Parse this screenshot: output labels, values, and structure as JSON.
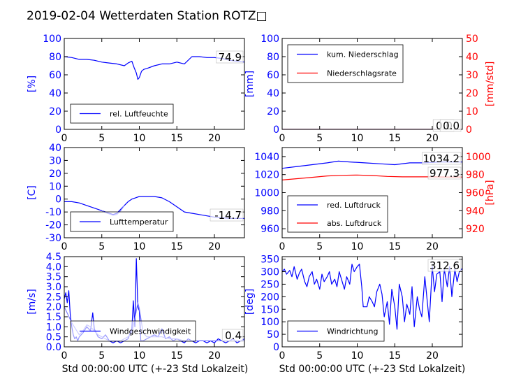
{
  "title": "2019-02-04 Wetterdaten Station ROTZ□",
  "colors": {
    "primary": "#0000ff",
    "secondary": "#ff0000",
    "faint": "#8080ff",
    "frame": "#000000"
  },
  "chart_data": [
    {
      "id": "humidity",
      "type": "line",
      "xlim": [
        0,
        24
      ],
      "xticks": [
        0,
        5,
        10,
        15,
        20
      ],
      "ylim": [
        0,
        100
      ],
      "yticks": [
        0,
        20,
        40,
        60,
        80,
        100
      ],
      "ylabel": "[%]",
      "legend": [
        {
          "label": "rel. Luftfeuchte",
          "color": "#0000ff"
        }
      ],
      "legend_position": "lower-left",
      "value_label": "74.9",
      "series": [
        {
          "name": "rel. Luftfeuchte",
          "color": "#0000ff",
          "x": [
            0,
            1,
            2,
            3,
            4,
            5,
            6,
            7,
            8,
            8.5,
            9,
            9.3,
            9.6,
            9.8,
            10,
            10.3,
            10.6,
            11,
            12,
            13,
            14,
            15,
            16,
            17,
            18,
            19,
            20,
            21,
            22,
            23,
            24
          ],
          "y": [
            80,
            79,
            77,
            77,
            76,
            74,
            73,
            72,
            70,
            73,
            75,
            68,
            62,
            55,
            57,
            64,
            66,
            67,
            70,
            72,
            72,
            74,
            72,
            80,
            80,
            79,
            79,
            78,
            76,
            75,
            74
          ]
        }
      ]
    },
    {
      "id": "precipitation",
      "type": "line",
      "xlim": [
        0,
        24
      ],
      "xticks": [
        0,
        5,
        10,
        15,
        20
      ],
      "ylim": [
        0,
        100
      ],
      "yticks": [
        0,
        20,
        40,
        60,
        80,
        100
      ],
      "ylabel": "[mm]",
      "y2lim": [
        0,
        50
      ],
      "y2ticks": [
        0,
        10,
        20,
        30,
        40,
        50
      ],
      "y2label": "[mm/std]",
      "legend": [
        {
          "label": "kum. Niederschlag",
          "color": "#0000ff"
        },
        {
          "label": "Niederschlagsrate",
          "color": "#ff0000"
        }
      ],
      "legend_position": "upper-left",
      "value_labels": [
        "0.0",
        "0.0"
      ],
      "series": [
        {
          "name": "kum. Niederschlag",
          "axis": "y",
          "color": "#0000ff",
          "x": [
            0,
            24
          ],
          "y": [
            0,
            0
          ]
        },
        {
          "name": "Niederschlagsrate",
          "axis": "y2",
          "color": "#ff0000",
          "x": [
            0,
            24
          ],
          "y": [
            0,
            0
          ]
        }
      ]
    },
    {
      "id": "temperature",
      "type": "line",
      "xlim": [
        0,
        24
      ],
      "xticks": [
        0,
        5,
        10,
        15,
        20
      ],
      "ylim": [
        -30,
        40
      ],
      "yticks": [
        -30,
        -20,
        -10,
        0,
        10,
        20,
        30,
        40
      ],
      "ylabel": "[C]",
      "legend": [
        {
          "label": "Lufttemperatur",
          "color": "#0000ff"
        }
      ],
      "legend_position": "lower-left",
      "value_label": "-14.7",
      "series": [
        {
          "name": "Lufttemperatur",
          "color": "#0000ff",
          "x": [
            0,
            1,
            2,
            3,
            4,
            5,
            6,
            6.5,
            7,
            7.5,
            8,
            8.5,
            9,
            9.5,
            10,
            11,
            12,
            13,
            14,
            15,
            16,
            17,
            18,
            19,
            20,
            21,
            22,
            23,
            24
          ],
          "y": [
            -2,
            -2,
            -3,
            -5,
            -7,
            -9,
            -11,
            -12,
            -11,
            -8,
            -5,
            -2,
            0,
            1,
            2,
            2,
            2,
            1,
            -2,
            -6,
            -10,
            -11,
            -12,
            -13,
            -14,
            -14.5,
            -15,
            -15,
            -15
          ]
        },
        {
          "name": "",
          "color": "#8080ff",
          "x": [
            5,
            5.5,
            6,
            6.5,
            7,
            7.5,
            8
          ],
          "y": [
            -9,
            -10.5,
            -11.5,
            -12.5,
            -12,
            -9,
            -5
          ]
        }
      ]
    },
    {
      "id": "pressure",
      "type": "line",
      "xlim": [
        0,
        24
      ],
      "xticks": [
        0,
        5,
        10,
        15,
        20
      ],
      "ylim": [
        950,
        1050
      ],
      "yticks": [
        960,
        980,
        1000,
        1020,
        1040
      ],
      "y2lim": [
        910,
        1010
      ],
      "y2ticks": [
        920,
        940,
        960,
        980,
        1000
      ],
      "y2label": "[hPa]",
      "legend": [
        {
          "label": "red. Luftdruck",
          "color": "#0000ff"
        },
        {
          "label": "abs. Luftdruck",
          "color": "#ff0000"
        }
      ],
      "legend_position": "lower-left",
      "value_labels": [
        "1034.2",
        "977.3"
      ],
      "series": [
        {
          "name": "red. Luftdruck",
          "axis": "y",
          "color": "#0000ff",
          "x": [
            0,
            2,
            4,
            6,
            7.5,
            9,
            11,
            13,
            15,
            17,
            19,
            21,
            24
          ],
          "y": [
            1027,
            1029,
            1031,
            1033,
            1035,
            1034,
            1033,
            1032,
            1031,
            1033,
            1033,
            1034,
            1034
          ]
        },
        {
          "name": "abs. Luftdruck",
          "axis": "y2",
          "color": "#ff0000",
          "x": [
            0,
            2,
            4,
            6,
            8,
            10,
            12,
            14,
            16,
            18,
            20,
            22,
            24
          ],
          "y": [
            974,
            975.5,
            977,
            978.5,
            979.2,
            979.5,
            979,
            978,
            977.5,
            977.5,
            977.5,
            977.3,
            977.3
          ]
        }
      ]
    },
    {
      "id": "wind_speed",
      "type": "line",
      "xlim": [
        0,
        24
      ],
      "xticks": [
        0,
        5,
        10,
        15,
        20
      ],
      "ylim": [
        0,
        4.5
      ],
      "yticks": [
        0.0,
        0.5,
        1.0,
        1.5,
        2.0,
        2.5,
        3.0,
        3.5,
        4.0,
        4.5
      ],
      "ylabel": "[m/s]",
      "legend": [
        {
          "label": "Windgeschwindigkeit",
          "color": "#0000ff"
        }
      ],
      "legend_position": "lower-center",
      "value_label": "0.4",
      "series": [
        {
          "name": "Windgeschwindigkeit",
          "color": "#0000ff",
          "x": [
            0,
            0.2,
            0.4,
            0.6,
            0.8,
            1,
            1.2,
            1.4,
            1.6,
            1.8,
            2,
            2.5,
            3,
            3.5,
            3.8,
            4,
            4.5,
            5,
            5.5,
            6,
            6.5,
            7,
            7.5,
            8,
            8.5,
            9,
            9.2,
            9.4,
            9.6,
            9.8,
            10,
            10.2,
            10.5,
            11,
            11.5,
            12,
            12.5,
            13,
            13.5,
            14,
            14.5,
            15,
            15.5,
            16,
            16.5,
            17,
            17.5,
            18,
            18.5,
            19,
            19.5,
            20,
            20.5,
            21,
            21.5,
            22,
            22.5,
            23,
            23.5,
            24
          ],
          "y": [
            2.4,
            2.7,
            2.2,
            2.8,
            1.6,
            1.0,
            0.6,
            0.4,
            0.5,
            0.3,
            0.5,
            0.7,
            1.0,
            0.8,
            1.7,
            0.9,
            0.5,
            0.4,
            0.6,
            0.3,
            0.2,
            0.3,
            0.2,
            0.3,
            0.4,
            0.9,
            2.3,
            1.0,
            4.4,
            2.0,
            1.8,
            0.3,
            0.3,
            0.4,
            0.5,
            0.6,
            0.5,
            0.9,
            0.4,
            0.5,
            0.3,
            0.4,
            0.3,
            0.2,
            0.4,
            0.3,
            0.2,
            0.3,
            0.3,
            0.2,
            0.3,
            0.2,
            0.4,
            0.3,
            0.2,
            0.3,
            0.4,
            0.2,
            0.3,
            0.4
          ]
        },
        {
          "name": "",
          "color": "#8080ff",
          "x": [
            0,
            0.5,
            1,
            1.5,
            2,
            2.5,
            3,
            3.5,
            4,
            4.5,
            5,
            5.5,
            6,
            6.5,
            7,
            7.5,
            8,
            8.5,
            9,
            9.5,
            9.8,
            10,
            10.5,
            11,
            12,
            13,
            14,
            15,
            16,
            17,
            18,
            19,
            20,
            21,
            22,
            23,
            24
          ],
          "y": [
            2.0,
            1.6,
            1.2,
            0.9,
            0.6,
            0.8,
            1.1,
            1.0,
            0.8,
            0.6,
            0.5,
            0.4,
            0.3,
            0.3,
            0.3,
            0.3,
            0.4,
            0.5,
            0.7,
            1.6,
            2.2,
            1.9,
            0.7,
            0.5,
            0.5,
            0.5,
            0.4,
            0.4,
            0.3,
            0.3,
            0.3,
            0.3,
            0.3,
            0.3,
            0.3,
            0.3,
            0.3
          ]
        }
      ]
    },
    {
      "id": "wind_direction",
      "type": "line",
      "xlim": [
        0,
        24
      ],
      "xticks": [
        0,
        5,
        10,
        15,
        20
      ],
      "ylim": [
        0,
        360
      ],
      "yticks": [
        0,
        50,
        100,
        150,
        200,
        250,
        300,
        350
      ],
      "ylabel": "[deg]",
      "legend": [
        {
          "label": "Windrichtung",
          "color": "#0000ff"
        }
      ],
      "legend_position": "lower-left",
      "value_label": "312.6",
      "series": [
        {
          "name": "Windrichtung",
          "color": "#0000ff",
          "x": [
            0,
            0.3,
            0.6,
            1,
            1.3,
            1.6,
            2,
            2.3,
            2.6,
            3,
            3.3,
            3.6,
            4,
            4.3,
            4.6,
            5,
            5.3,
            5.6,
            6,
            6.3,
            6.6,
            7,
            7.3,
            7.6,
            8,
            8.3,
            8.6,
            9,
            9.3,
            9.6,
            10,
            10.3,
            10.6,
            10.8,
            11,
            11.3,
            11.6,
            12,
            12.3,
            12.6,
            13,
            13.3,
            13.6,
            14,
            14.3,
            14.6,
            15,
            15.3,
            15.6,
            16,
            16.3,
            16.6,
            17,
            17.3,
            17.6,
            18,
            18.3,
            18.6,
            19,
            19.3,
            19.6,
            20,
            20.3,
            20.6,
            21,
            21.3,
            21.6,
            22,
            22.3,
            22.6,
            23,
            23.3,
            23.6,
            24
          ],
          "y": [
            300,
            310,
            290,
            305,
            280,
            320,
            270,
            295,
            310,
            260,
            240,
            280,
            300,
            250,
            270,
            230,
            290,
            260,
            280,
            300,
            250,
            270,
            240,
            300,
            260,
            230,
            280,
            250,
            330,
            300,
            320,
            330,
            240,
            160,
            160,
            160,
            200,
            180,
            160,
            220,
            250,
            210,
            120,
            180,
            90,
            230,
            160,
            70,
            250,
            200,
            100,
            170,
            130,
            240,
            80,
            200,
            150,
            120,
            280,
            190,
            100,
            320,
            220,
            290,
            300,
            180,
            310,
            240,
            320,
            200,
            310,
            260,
            300,
            313
          ]
        }
      ]
    }
  ],
  "xlabels": [
    "Std 00:00:00 UTC (+-23 Std Lokalzeit)",
    "Std 00:00:00 UTC (+-23 Std Lokalzeit)"
  ]
}
